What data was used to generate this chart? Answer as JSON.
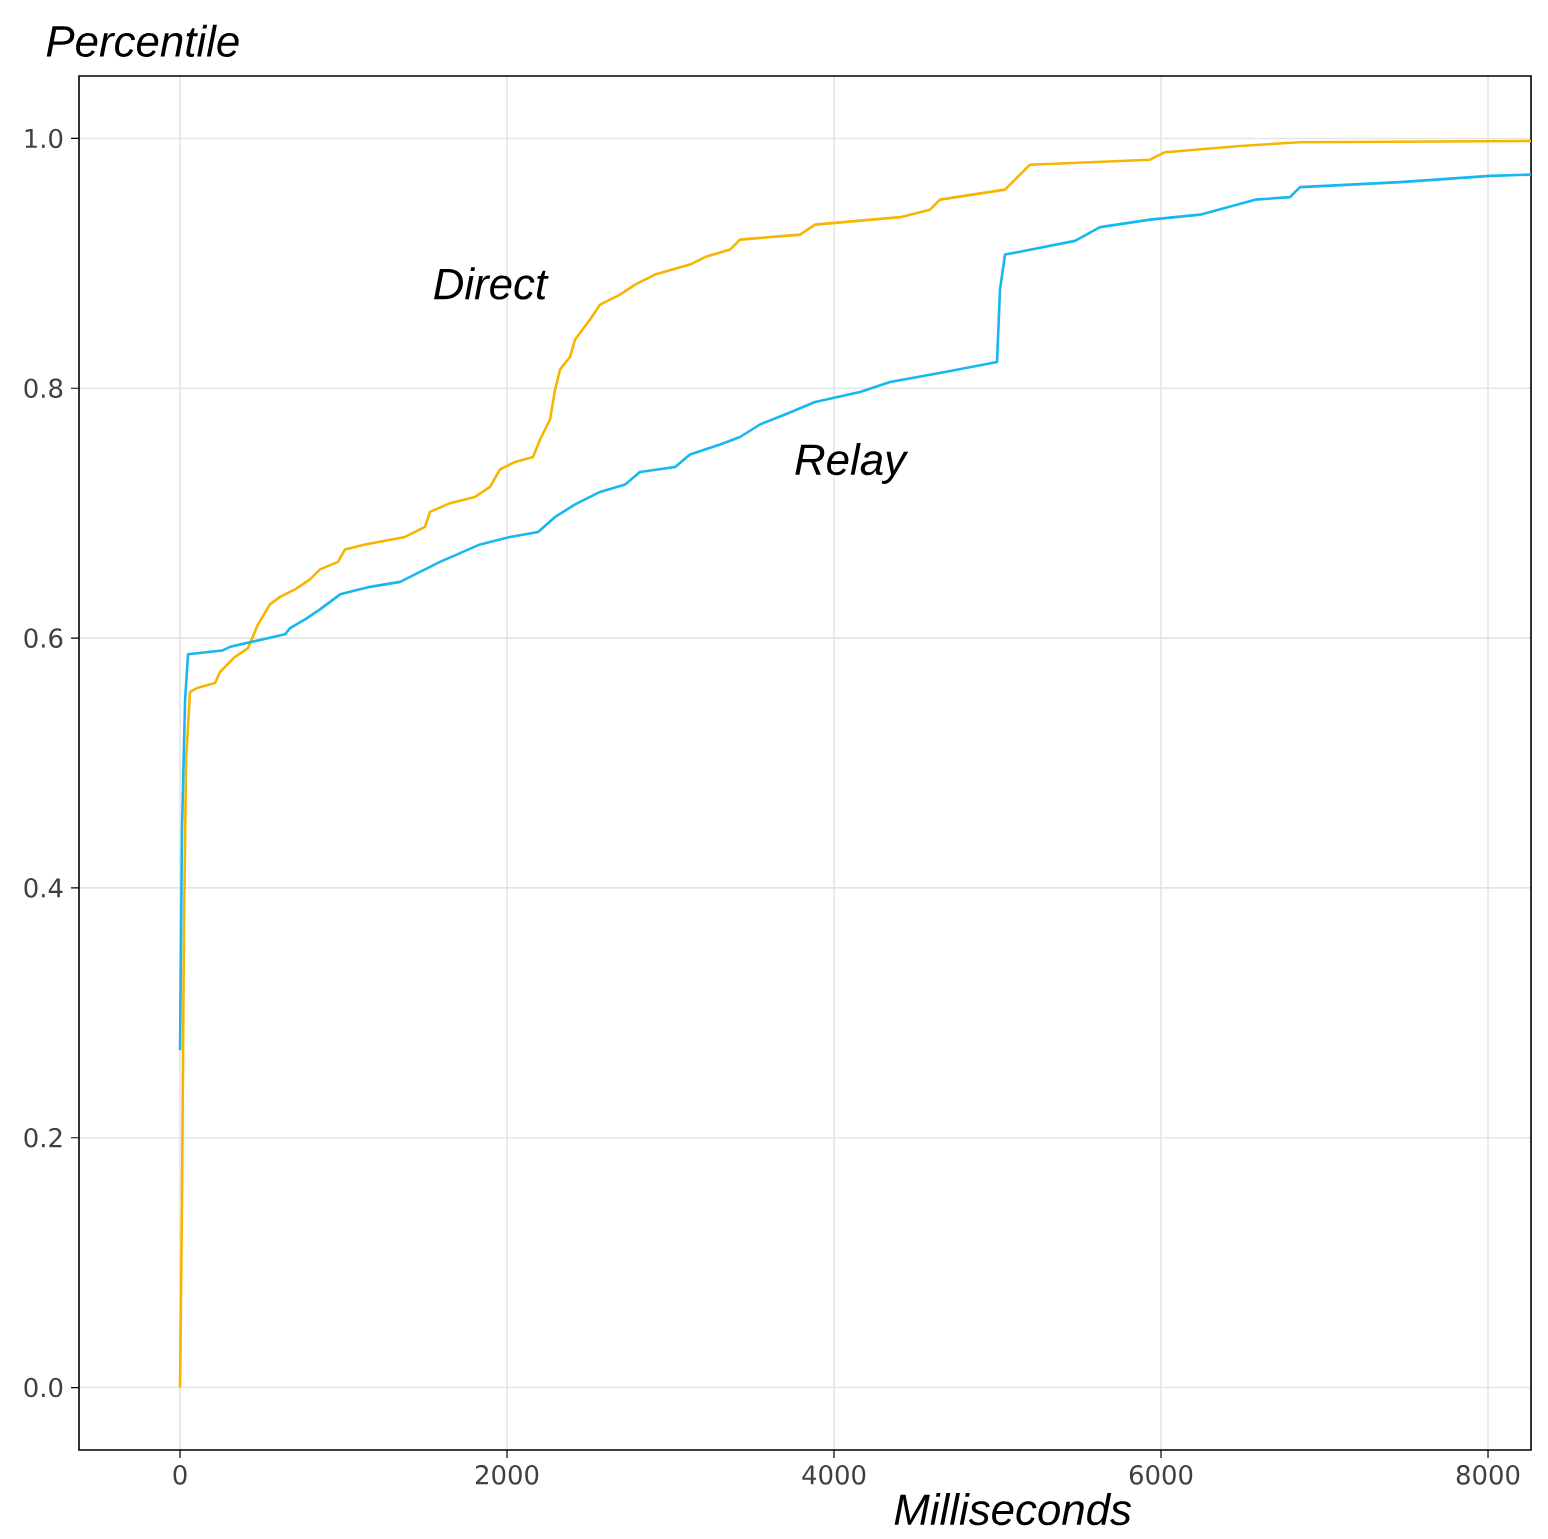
{
  "chart_data": {
    "type": "line",
    "xlabel": "Milliseconds",
    "ylabel": "Percentile",
    "xlim": [
      -618,
      8263
    ],
    "ylim": [
      -0.05,
      1.05
    ],
    "xticks": [
      0,
      2000,
      4000,
      6000,
      8000
    ],
    "yticks": [
      {
        "value": 0,
        "label": "0.0"
      },
      0.2,
      0.4,
      0.6,
      0.8,
      {
        "value": 1,
        "label": "1.0"
      }
    ],
    "grid": true,
    "marker": "none",
    "line_style": "solid",
    "series": [
      {
        "name": "Direct",
        "color": "#f7b500",
        "x": [
          0,
          12,
          24,
          37,
          61,
          104,
          214,
          245,
          336,
          416,
          477,
          550,
          612,
          703,
          795,
          856,
          966,
          1009,
          1131,
          1376,
          1498,
          1529,
          1651,
          1804,
          1896,
          1957,
          2049,
          2159,
          2202,
          2263,
          2294,
          2324,
          2385,
          2416,
          2508,
          2569,
          2691,
          2783,
          2905,
          3119,
          3211,
          3364,
          3425,
          3792,
          3884,
          4404,
          4587,
          4648,
          5046,
          5107,
          5199,
          5933,
          6024,
          6483,
          6850,
          8263
        ],
        "values": [
          0,
          0.15,
          0.367,
          0.503,
          0.557,
          0.56,
          0.564,
          0.573,
          0.585,
          0.592,
          0.611,
          0.627,
          0.633,
          0.639,
          0.647,
          0.655,
          0.661,
          0.671,
          0.675,
          0.681,
          0.689,
          0.701,
          0.708,
          0.713,
          0.721,
          0.735,
          0.741,
          0.745,
          0.759,
          0.775,
          0.799,
          0.815,
          0.825,
          0.839,
          0.855,
          0.867,
          0.875,
          0.883,
          0.891,
          0.899,
          0.905,
          0.911,
          0.919,
          0.923,
          0.931,
          0.937,
          0.943,
          0.951,
          0.959,
          0.967,
          0.979,
          0.983,
          0.989,
          0.994,
          0.997,
          0.998
        ]
      },
      {
        "name": "Relay",
        "color": "#18b7f0",
        "x": [
          0,
          12,
          31,
          49,
          257,
          306,
          642,
          673,
          765,
          856,
          979,
          1162,
          1346,
          1437,
          1590,
          1835,
          2018,
          2190,
          2294,
          2416,
          2569,
          2722,
          2813,
          3028,
          3119,
          3303,
          3425,
          3547,
          3700,
          3884,
          4159,
          4343,
          4679,
          4997,
          5015,
          5046,
          5474,
          5627,
          5933,
          6239,
          6575,
          6789,
          6850,
          7462,
          8012,
          8263
        ],
        "values": [
          0.27,
          0.447,
          0.551,
          0.587,
          0.59,
          0.593,
          0.603,
          0.608,
          0.615,
          0.623,
          0.635,
          0.641,
          0.645,
          0.651,
          0.661,
          0.675,
          0.681,
          0.685,
          0.697,
          0.707,
          0.717,
          0.723,
          0.733,
          0.737,
          0.747,
          0.755,
          0.761,
          0.771,
          0.779,
          0.789,
          0.797,
          0.805,
          0.813,
          0.821,
          0.879,
          0.907,
          0.918,
          0.929,
          0.935,
          0.939,
          0.951,
          0.953,
          0.961,
          0.965,
          0.97,
          0.971
        ]
      }
    ]
  }
}
